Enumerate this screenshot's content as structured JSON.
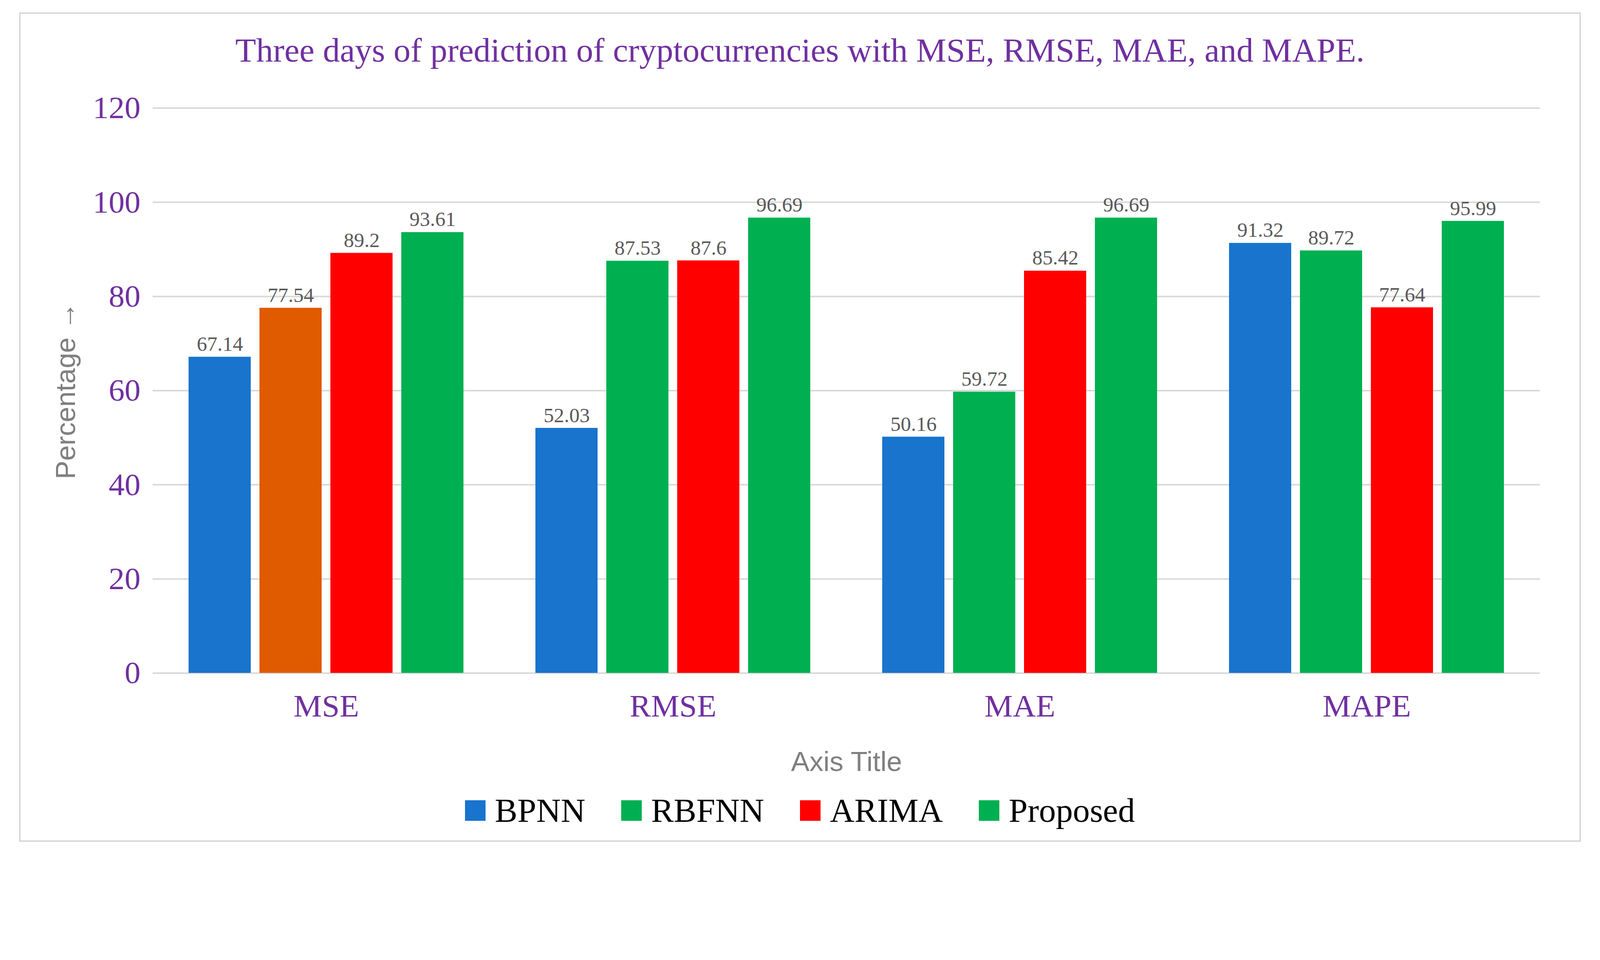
{
  "chart_data": {
    "type": "bar",
    "title": "Three days of prediction of cryptocurrencies with MSE, RMSE, MAE, and MAPE.",
    "x_label": "Axis Title",
    "y_label": "Percentage",
    "categories": [
      "MSE",
      "RMSE",
      "MAE",
      "MAPE"
    ],
    "series": [
      {
        "name": "BPNN",
        "color": "#1874cd",
        "values": [
          67.14,
          52.03,
          50.16,
          91.32
        ]
      },
      {
        "name": "RBFNN",
        "color": "#00b050",
        "colors": [
          "#e05a00",
          "#00b050",
          "#00b050",
          "#00b050"
        ],
        "values": [
          77.54,
          87.53,
          59.72,
          89.72
        ]
      },
      {
        "name": "ARIMA",
        "color": "#ff0000",
        "values": [
          89.2,
          87.6,
          85.42,
          77.64
        ]
      },
      {
        "name": "Proposed",
        "color": "#00b050",
        "values": [
          93.61,
          96.69,
          96.69,
          95.99
        ]
      }
    ],
    "ylim": [
      0,
      120
    ],
    "yticks": [
      0,
      20,
      40,
      60,
      80,
      100,
      120
    ],
    "grid": true,
    "data_labels": true,
    "legend": "bottom"
  }
}
